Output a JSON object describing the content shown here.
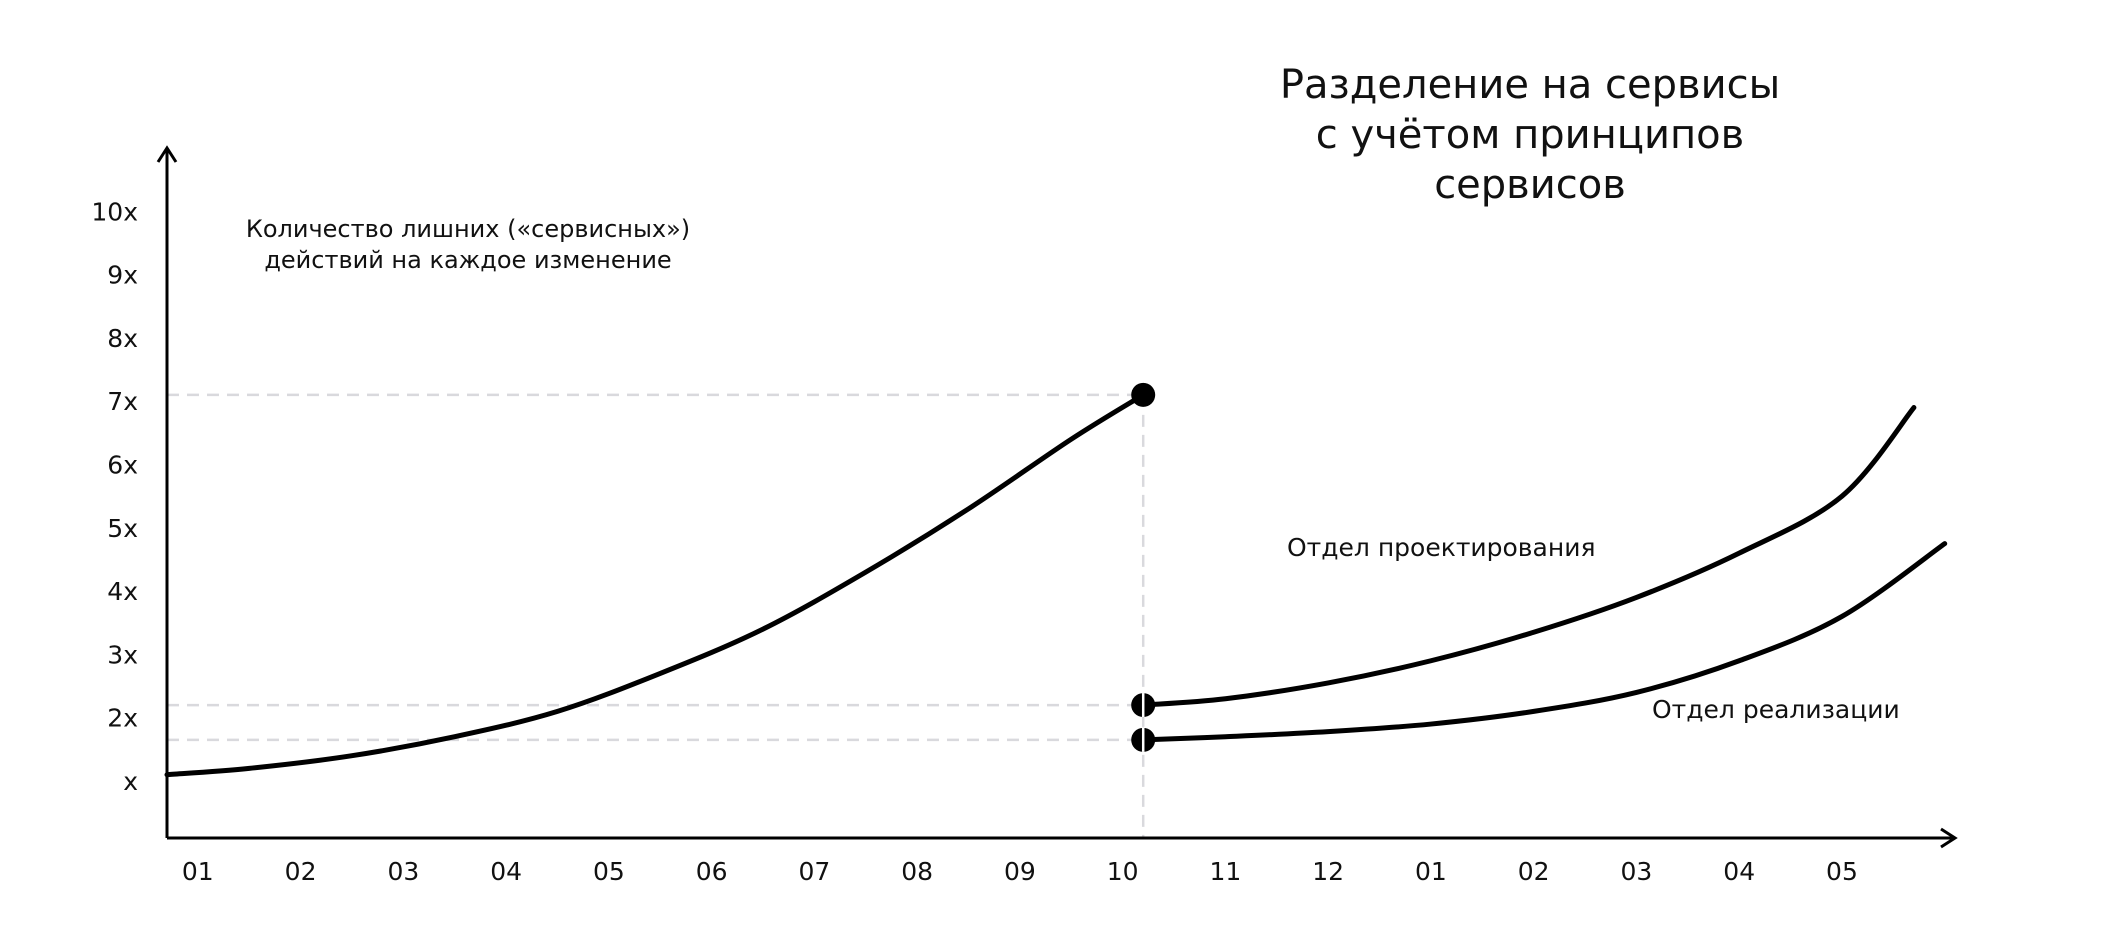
{
  "chart_data": {
    "type": "line",
    "title_lines": [
      "Разделение на сервисы",
      "с учётом принципов",
      "сервисов"
    ],
    "ylabel_lines": [
      "Количество лишних («сервисных»)",
      "действий на каждое изменение"
    ],
    "x_ticks": [
      "01",
      "02",
      "03",
      "04",
      "05",
      "06",
      "07",
      "08",
      "09",
      "10",
      "11",
      "12",
      "01",
      "02",
      "03",
      "04",
      "05"
    ],
    "y_ticks": [
      "x",
      "2x",
      "3x",
      "4x",
      "5x",
      "6x",
      "7x",
      "8x",
      "9x",
      "10x"
    ],
    "y_tick_values": [
      1,
      2,
      3,
      4,
      5,
      6,
      7,
      8,
      9,
      10
    ],
    "xlim": [
      0.7,
      18.1
    ],
    "ylim": [
      0.1,
      11
    ],
    "split_x": 10.0,
    "series": [
      {
        "name": "",
        "points": [
          [
            0.7,
            1.1
          ],
          [
            1.5,
            1.2
          ],
          [
            2.5,
            1.4
          ],
          [
            3.5,
            1.7
          ],
          [
            4.5,
            2.1
          ],
          [
            5.5,
            2.7
          ],
          [
            6.5,
            3.4
          ],
          [
            7.5,
            4.3
          ],
          [
            8.5,
            5.3
          ],
          [
            9.5,
            6.4
          ],
          [
            10.2,
            7.1
          ]
        ],
        "endpoint_marker": [
          10.2,
          7.1
        ]
      },
      {
        "name": "Отдел проектирования",
        "points": [
          [
            10.2,
            2.2
          ],
          [
            11.0,
            2.3
          ],
          [
            12.0,
            2.55
          ],
          [
            13.0,
            2.9
          ],
          [
            14.0,
            3.35
          ],
          [
            15.0,
            3.9
          ],
          [
            16.0,
            4.6
          ],
          [
            17.0,
            5.5
          ],
          [
            17.7,
            6.9
          ]
        ],
        "start_marker": [
          10.2,
          2.2
        ]
      },
      {
        "name": "Отдел реализации",
        "points": [
          [
            10.2,
            1.65
          ],
          [
            11.0,
            1.7
          ],
          [
            12.0,
            1.78
          ],
          [
            13.0,
            1.9
          ],
          [
            14.0,
            2.1
          ],
          [
            15.0,
            2.4
          ],
          [
            16.0,
            2.9
          ],
          [
            17.0,
            3.6
          ],
          [
            18.0,
            4.75
          ]
        ],
        "start_marker": [
          10.2,
          1.65
        ]
      }
    ],
    "reference_lines": [
      {
        "y": 7.1
      },
      {
        "y": 2.2
      },
      {
        "y": 1.65
      }
    ],
    "grid": false
  }
}
